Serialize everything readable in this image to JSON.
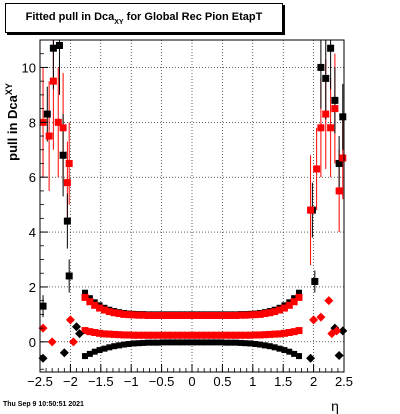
{
  "chart_data": {
    "type": "scatter",
    "title_main": "Fitted pull in Dca",
    "title_sub": "XY",
    "title_tail": " for Global Rec Pion EtapT",
    "ylabel_main": "pull in Dca",
    "ylabel_sub": "XY",
    "xlabel": "η",
    "xlim": [
      -2.5,
      2.5
    ],
    "ylim": [
      -1.1,
      11.0
    ],
    "xticks": [
      -2.5,
      -2,
      -1.5,
      -1,
      -0.5,
      0,
      0.5,
      1,
      1.5,
      2,
      2.5
    ],
    "xtick_labels": [
      "−2.5",
      "−2",
      "−1.5",
      "−1",
      "−0.5",
      "0",
      "0.5",
      "1",
      "1.5",
      "2",
      "2.5"
    ],
    "yticks": [
      0,
      2,
      4,
      6,
      8,
      10
    ],
    "ytick_labels": [
      "0",
      "2",
      "4",
      "6",
      "8",
      "10"
    ],
    "grid": true,
    "colors": {
      "black_series": "#000000",
      "red_series": "#ff0000",
      "errorbar_red": "#ff0000"
    }
  },
  "footer": {
    "timestamp": "Thu Sep  9 10:50:51 2021"
  }
}
